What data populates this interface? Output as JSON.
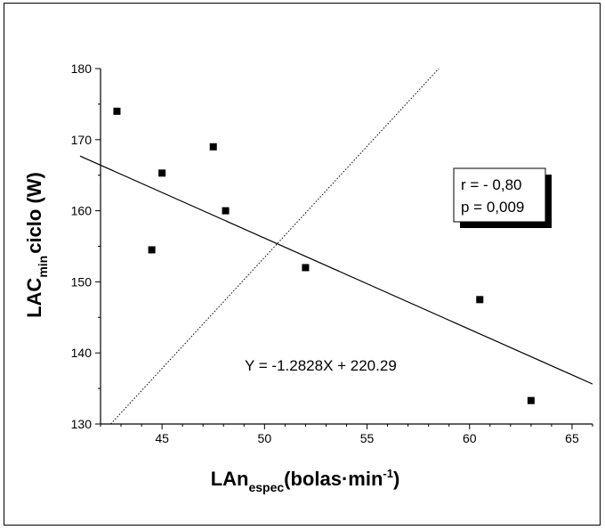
{
  "chart_data": {
    "type": "scatter",
    "title": "",
    "xlabel": {
      "main": "LAn",
      "sub": "espec",
      "rest": "(bolas",
      "dot": "·",
      "rest2": "min",
      "sup": "-1",
      "close": ")"
    },
    "ylabel": {
      "main": "LAC",
      "sub": "min",
      "rest": "ciclo (W)"
    },
    "xlim": [
      42,
      66
    ],
    "ylim": [
      130,
      180
    ],
    "xticks": [
      45,
      50,
      55,
      60,
      65
    ],
    "yticks": [
      130,
      140,
      150,
      160,
      170,
      180
    ],
    "grid": false,
    "points": [
      {
        "x": 42.8,
        "y": 174.0
      },
      {
        "x": 44.5,
        "y": 154.5
      },
      {
        "x": 45.0,
        "y": 165.3
      },
      {
        "x": 47.5,
        "y": 169.0
      },
      {
        "x": 48.1,
        "y": 160.0
      },
      {
        "x": 52.0,
        "y": 152.0
      },
      {
        "x": 60.5,
        "y": 147.5
      },
      {
        "x": 63.0,
        "y": 133.3
      }
    ],
    "regression": {
      "slope": -1.2828,
      "intercept": 220.29,
      "equation": "Y = -1.2828X + 220.29"
    },
    "identity_line": {
      "from": [
        42.5,
        130
      ],
      "to": [
        58.5,
        180
      ]
    },
    "stats": {
      "r": "r = - 0,80",
      "p": "p = 0,009"
    }
  }
}
